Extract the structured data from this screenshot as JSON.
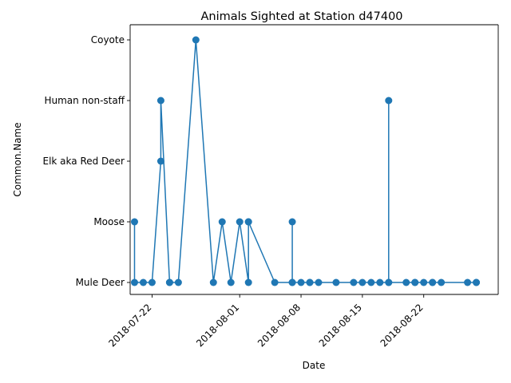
{
  "chart_data": {
    "type": "line",
    "title": "Animals Sighted at Station d47400",
    "xlabel": "Date",
    "ylabel": "Common.Name",
    "categories": [
      "Mule Deer",
      "Moose",
      "Elk aka Red Deer",
      "Human non-staff",
      "Coyote"
    ],
    "x_ticks": [
      "2018-07-22",
      "2018-08-01",
      "2018-08-08",
      "2018-08-15",
      "2018-08-22"
    ],
    "xlim": [
      "2018-07-19T12:00",
      "2018-08-30T12:00"
    ],
    "color": "#1f77b4",
    "marker": "circle",
    "grid": false,
    "series": [
      {
        "points": [
          [
            "2018-07-20T00:00",
            "Moose"
          ],
          [
            "2018-07-20T00:00",
            "Mule Deer"
          ],
          [
            "2018-07-21T00:00",
            "Mule Deer"
          ],
          [
            "2018-07-22T00:00",
            "Mule Deer"
          ],
          [
            "2018-07-23T00:00",
            "Elk aka Red Deer"
          ],
          [
            "2018-07-23T00:00",
            "Human non-staff"
          ],
          [
            "2018-07-24T00:00",
            "Mule Deer"
          ],
          [
            "2018-07-24T00:00",
            "Mule Deer"
          ],
          [
            "2018-07-25T00:00",
            "Mule Deer"
          ],
          [
            "2018-07-27T00:00",
            "Coyote"
          ],
          [
            "2018-07-29T00:00",
            "Mule Deer"
          ],
          [
            "2018-07-30T00:00",
            "Moose"
          ],
          [
            "2018-07-31T00:00",
            "Mule Deer"
          ],
          [
            "2018-08-01T00:00",
            "Moose"
          ],
          [
            "2018-08-02T00:00",
            "Mule Deer"
          ],
          [
            "2018-08-02T00:00",
            "Moose"
          ],
          [
            "2018-08-02T00:00",
            "Moose"
          ],
          [
            "2018-08-05T00:00",
            "Mule Deer"
          ],
          [
            "2018-08-07T00:00",
            "Mule Deer"
          ],
          [
            "2018-08-07T00:00",
            "Moose"
          ],
          [
            "2018-08-07T00:00",
            "Mule Deer"
          ],
          [
            "2018-08-08T00:00",
            "Mule Deer"
          ],
          [
            "2018-08-09T00:00",
            "Mule Deer"
          ],
          [
            "2018-08-09T00:00",
            "Mule Deer"
          ],
          [
            "2018-08-10T00:00",
            "Mule Deer"
          ],
          [
            "2018-08-12T00:00",
            "Mule Deer"
          ],
          [
            "2018-08-14T00:00",
            "Mule Deer"
          ],
          [
            "2018-08-15T00:00",
            "Mule Deer"
          ],
          [
            "2018-08-16T00:00",
            "Mule Deer"
          ],
          [
            "2018-08-17T00:00",
            "Mule Deer"
          ],
          [
            "2018-08-18T00:00",
            "Mule Deer"
          ],
          [
            "2018-08-18T00:00",
            "Human non-staff"
          ],
          [
            "2018-08-18T00:00",
            "Mule Deer"
          ],
          [
            "2018-08-20T00:00",
            "Mule Deer"
          ],
          [
            "2018-08-21T00:00",
            "Mule Deer"
          ],
          [
            "2018-08-21T00:00",
            "Mule Deer"
          ],
          [
            "2018-08-22T00:00",
            "Mule Deer"
          ],
          [
            "2018-08-23T00:00",
            "Mule Deer"
          ],
          [
            "2018-08-23T00:00",
            "Mule Deer"
          ],
          [
            "2018-08-24T00:00",
            "Mule Deer"
          ],
          [
            "2018-08-27T00:00",
            "Mule Deer"
          ],
          [
            "2018-08-28T00:00",
            "Mule Deer"
          ],
          [
            "2018-08-28T00:00",
            "Mule Deer"
          ]
        ]
      }
    ]
  }
}
